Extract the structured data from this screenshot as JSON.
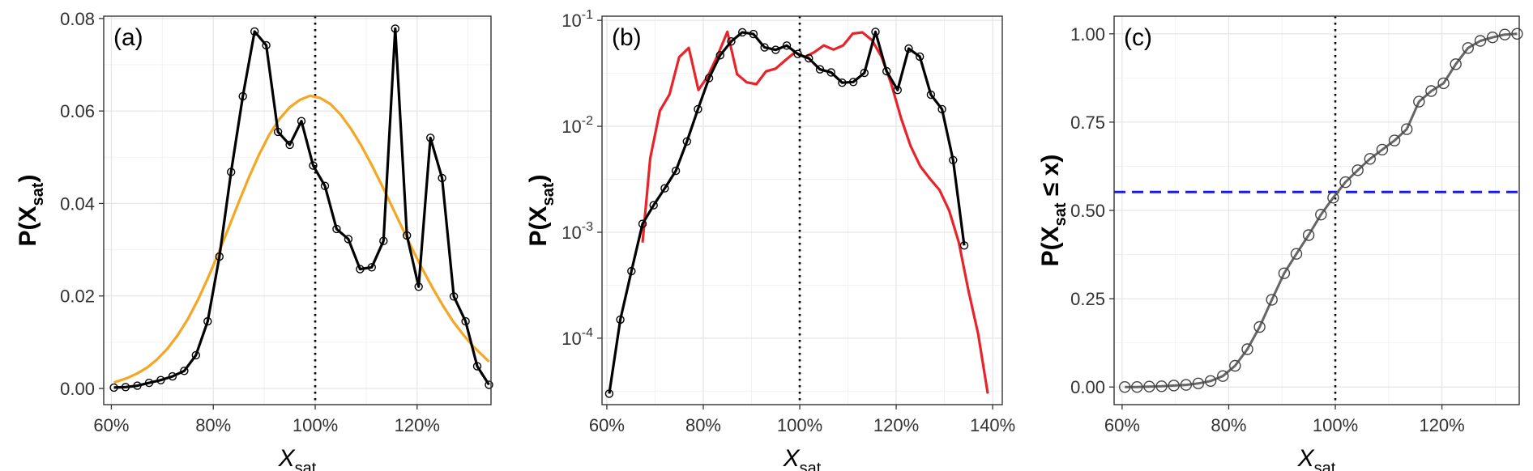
{
  "chart_data": [
    {
      "panel_label": "(a)",
      "type": "line",
      "scale_y": "linear",
      "xlim": [
        0.585,
        1.345
      ],
      "ylim": [
        -0.0035,
        0.0805
      ],
      "xticks": [
        0.6,
        0.8,
        1.0,
        1.2
      ],
      "xtick_labels": [
        "60%",
        "80%",
        "100%",
        "120%"
      ],
      "yticks": [
        0.0,
        0.02,
        0.04,
        0.06,
        0.08
      ],
      "ytick_labels": [
        "0.00",
        "0.02",
        "0.04",
        "0.06",
        "0.08"
      ],
      "xlabel": "X",
      "xlabel_sub": "sat",
      "ylabel": "P(X",
      "ylabel_sub": "sat",
      "ylabel_suffix": ")",
      "vline": 1.0,
      "grid": true,
      "series": [
        {
          "color": "#000000",
          "markers": true,
          "x": [
            0.605,
            0.628,
            0.651,
            0.674,
            0.697,
            0.72,
            0.743,
            0.766,
            0.789,
            0.812,
            0.835,
            0.858,
            0.881,
            0.904,
            0.927,
            0.95,
            0.973,
            0.996,
            1.019,
            1.042,
            1.065,
            1.088,
            1.111,
            1.134,
            1.157,
            1.18,
            1.203,
            1.226,
            1.249,
            1.272,
            1.295,
            1.318,
            1.341
          ],
          "y": [
            0.0002,
            0.0003,
            0.0006,
            0.0012,
            0.0018,
            0.0026,
            0.0038,
            0.0072,
            0.0145,
            0.0285,
            0.0468,
            0.0632,
            0.0772,
            0.0742,
            0.0555,
            0.0527,
            0.0578,
            0.0482,
            0.0438,
            0.0345,
            0.0323,
            0.0258,
            0.0262,
            0.0319,
            0.0778,
            0.0331,
            0.022,
            0.0542,
            0.0455,
            0.0199,
            0.0145,
            0.0048,
            0.0008
          ]
        },
        {
          "color": "#F5A623",
          "markers": false,
          "x": [
            0.605,
            0.63,
            0.65,
            0.67,
            0.69,
            0.71,
            0.73,
            0.75,
            0.77,
            0.79,
            0.81,
            0.83,
            0.85,
            0.87,
            0.89,
            0.91,
            0.93,
            0.95,
            0.97,
            0.99,
            1.01,
            1.03,
            1.05,
            1.07,
            1.09,
            1.11,
            1.13,
            1.15,
            1.17,
            1.19,
            1.21,
            1.23,
            1.25,
            1.27,
            1.29,
            1.31,
            1.341
          ],
          "y": [
            0.0013,
            0.0022,
            0.0032,
            0.0045,
            0.0063,
            0.0086,
            0.0115,
            0.015,
            0.0192,
            0.024,
            0.0292,
            0.0347,
            0.0403,
            0.0457,
            0.0506,
            0.0549,
            0.0583,
            0.0608,
            0.0624,
            0.0633,
            0.0628,
            0.0615,
            0.0592,
            0.0562,
            0.0526,
            0.0485,
            0.0441,
            0.0395,
            0.0349,
            0.0303,
            0.0259,
            0.0218,
            0.018,
            0.0146,
            0.0117,
            0.0091,
            0.0058
          ]
        }
      ]
    },
    {
      "panel_label": "(b)",
      "type": "line",
      "scale_y": "log10",
      "xlim": [
        0.59,
        1.42
      ],
      "ylim": [
        2.36e-05,
        0.1095
      ],
      "xticks": [
        0.6,
        0.8,
        1.0,
        1.2,
        1.4
      ],
      "xtick_labels": [
        "60%",
        "80%",
        "100%",
        "120%",
        "140%"
      ],
      "yticks": [
        0.0001,
        0.001,
        0.01,
        0.1
      ],
      "ytick_labels": [
        {
          "base": "10",
          "exp": "-4"
        },
        {
          "base": "10",
          "exp": "-3"
        },
        {
          "base": "10",
          "exp": "-2"
        },
        {
          "base": "10",
          "exp": "-1"
        }
      ],
      "xlabel": "X",
      "xlabel_sub": "sat",
      "ylabel": "P(X",
      "ylabel_sub": "sat",
      "ylabel_suffix": ")",
      "vline": 1.0,
      "grid": true,
      "series": [
        {
          "color": "#000000",
          "markers": true,
          "x": [
            0.605,
            0.628,
            0.651,
            0.674,
            0.697,
            0.72,
            0.743,
            0.766,
            0.789,
            0.812,
            0.835,
            0.858,
            0.881,
            0.904,
            0.927,
            0.95,
            0.973,
            0.996,
            1.019,
            1.042,
            1.065,
            1.088,
            1.111,
            1.134,
            1.157,
            1.18,
            1.203,
            1.226,
            1.249,
            1.272,
            1.295,
            1.318,
            1.341
          ],
          "y": [
            3e-05,
            0.00015,
            0.00043,
            0.0012,
            0.0018,
            0.0026,
            0.0038,
            0.0072,
            0.0145,
            0.0285,
            0.0468,
            0.0632,
            0.0772,
            0.0742,
            0.0555,
            0.0527,
            0.0578,
            0.0482,
            0.0438,
            0.0345,
            0.0323,
            0.0258,
            0.0262,
            0.0319,
            0.0778,
            0.0331,
            0.022,
            0.0542,
            0.0455,
            0.0199,
            0.0145,
            0.0048,
            0.00075
          ]
        },
        {
          "color": "#E8232A",
          "markers": false,
          "x": [
            0.674,
            0.69,
            0.71,
            0.73,
            0.75,
            0.77,
            0.79,
            0.81,
            0.83,
            0.85,
            0.87,
            0.89,
            0.91,
            0.93,
            0.95,
            0.97,
            0.99,
            1.01,
            1.03,
            1.05,
            1.07,
            1.09,
            1.11,
            1.13,
            1.15,
            1.17,
            1.19,
            1.21,
            1.23,
            1.25,
            1.27,
            1.29,
            1.31,
            1.33,
            1.35,
            1.37,
            1.39
          ],
          "y": [
            0.0008,
            0.005,
            0.014,
            0.02,
            0.045,
            0.055,
            0.022,
            0.03,
            0.047,
            0.078,
            0.031,
            0.026,
            0.025,
            0.033,
            0.035,
            0.042,
            0.05,
            0.045,
            0.05,
            0.058,
            0.053,
            0.058,
            0.075,
            0.077,
            0.065,
            0.045,
            0.025,
            0.012,
            0.0065,
            0.0042,
            0.0032,
            0.0025,
            0.0016,
            0.0008,
            0.00028,
            0.00011,
            3e-05
          ]
        }
      ]
    },
    {
      "panel_label": "(c)",
      "type": "line",
      "scale_y": "linear",
      "xlim": [
        0.585,
        1.345
      ],
      "ylim": [
        -0.05,
        1.05
      ],
      "xticks": [
        0.6,
        0.8,
        1.0,
        1.2
      ],
      "xtick_labels": [
        "60%",
        "80%",
        "100%",
        "120%"
      ],
      "yticks": [
        0.0,
        0.25,
        0.5,
        0.75,
        1.0
      ],
      "ytick_labels": [
        "0.00",
        "0.25",
        "0.50",
        "0.75",
        "1.00"
      ],
      "xlabel": "X",
      "xlabel_sub": "sat",
      "ylabel": "P(X",
      "ylabel_sub": "sat",
      "ylabel_suffix": " ≤ x)",
      "vline": 1.0,
      "hline": 0.552,
      "hline_color": "#1A1AE6",
      "grid": true,
      "series": [
        {
          "color": "#666666",
          "markers": true,
          "x": [
            0.605,
            0.628,
            0.651,
            0.674,
            0.697,
            0.72,
            0.743,
            0.766,
            0.789,
            0.812,
            0.835,
            0.858,
            0.881,
            0.904,
            0.927,
            0.95,
            0.973,
            0.996,
            1.019,
            1.042,
            1.065,
            1.088,
            1.111,
            1.134,
            1.157,
            1.18,
            1.203,
            1.226,
            1.249,
            1.272,
            1.295,
            1.318,
            1.341
          ],
          "y": [
            0.0,
            0.0,
            0.001,
            0.002,
            0.004,
            0.006,
            0.01,
            0.017,
            0.031,
            0.06,
            0.107,
            0.17,
            0.247,
            0.322,
            0.377,
            0.43,
            0.488,
            0.536,
            0.58,
            0.614,
            0.646,
            0.672,
            0.698,
            0.73,
            0.808,
            0.838,
            0.86,
            0.914,
            0.96,
            0.98,
            0.99,
            0.998,
            1.0
          ]
        }
      ]
    }
  ]
}
